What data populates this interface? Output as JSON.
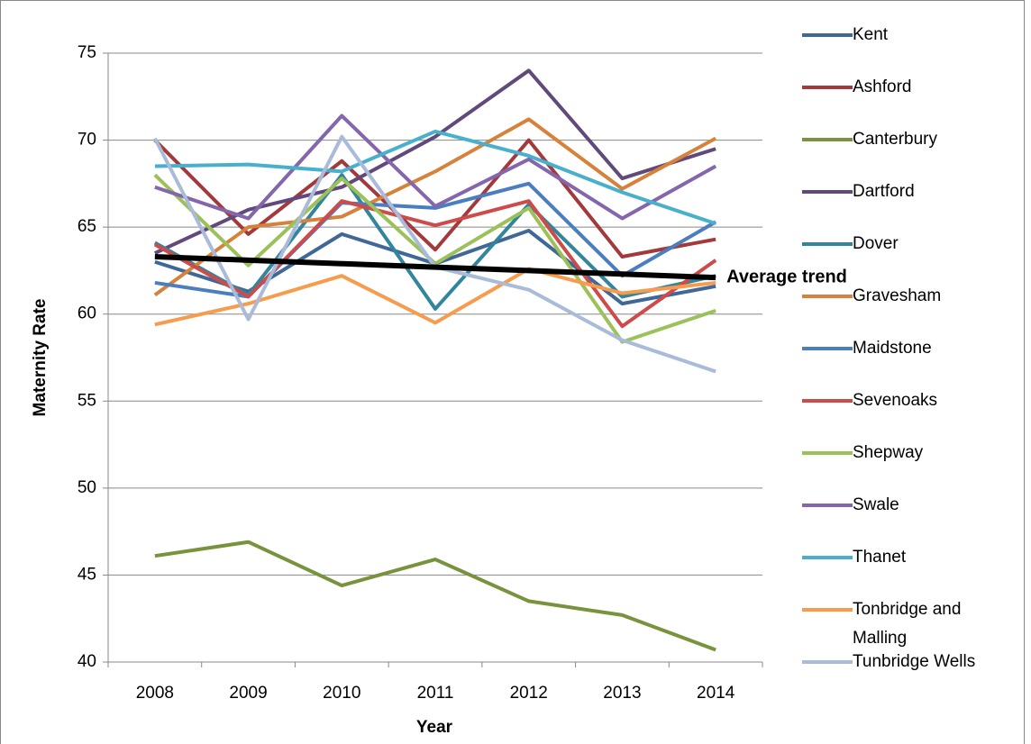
{
  "chart_data": {
    "type": "line",
    "x_label": "Year",
    "y_label": "Maternity Rate",
    "categories": [
      "2008",
      "2009",
      "2010",
      "2011",
      "2012",
      "2013",
      "2014"
    ],
    "ylim": [
      40,
      75
    ],
    "yticks": [
      40,
      45,
      50,
      55,
      60,
      65,
      70,
      75
    ],
    "grid": true,
    "legend": "right",
    "series": [
      {
        "name": "Kent",
        "color": "#3f6898",
        "values": [
          63.0,
          61.3,
          64.6,
          62.9,
          64.8,
          60.6,
          61.6
        ]
      },
      {
        "name": "Ashford",
        "color": "#a3393a",
        "values": [
          70.0,
          64.6,
          68.8,
          63.7,
          70.0,
          63.3,
          64.3
        ]
      },
      {
        "name": "Canterbury",
        "color": "#77933c",
        "values": [
          46.1,
          46.9,
          44.4,
          45.9,
          43.5,
          42.7,
          40.7
        ]
      },
      {
        "name": "Dartford",
        "color": "#604a7b",
        "values": [
          63.5,
          66.0,
          67.3,
          70.2,
          74.0,
          67.8,
          69.5
        ]
      },
      {
        "name": "Dover",
        "color": "#31859c",
        "values": [
          64.1,
          61.1,
          68.0,
          60.3,
          66.3,
          61.0,
          62.2
        ]
      },
      {
        "name": "Gravesham",
        "color": "#d7823a",
        "values": [
          61.1,
          65.0,
          65.6,
          68.2,
          71.2,
          67.2,
          70.1
        ]
      },
      {
        "name": "Maidstone",
        "color": "#4a7ec0",
        "values": [
          61.8,
          61.0,
          66.4,
          66.1,
          67.5,
          62.2,
          65.3
        ]
      },
      {
        "name": "Sevenoaks",
        "color": "#cd4b4b",
        "values": [
          64.0,
          61.0,
          66.5,
          65.1,
          66.5,
          59.3,
          63.1
        ]
      },
      {
        "name": "Shepway",
        "color": "#9bc158",
        "values": [
          68.0,
          62.8,
          67.8,
          62.9,
          66.1,
          58.4,
          60.2
        ]
      },
      {
        "name": "Swale",
        "color": "#8466ac",
        "values": [
          67.3,
          65.5,
          71.4,
          66.2,
          68.9,
          65.5,
          68.5
        ]
      },
      {
        "name": "Thanet",
        "color": "#48b0cc",
        "values": [
          68.5,
          68.6,
          68.2,
          70.5,
          69.1,
          67.0,
          65.2
        ]
      },
      {
        "name": "Tonbridge and Malling",
        "color": "#f79b4c",
        "values": [
          59.4,
          60.6,
          62.2,
          59.5,
          62.6,
          61.2,
          61.8
        ]
      },
      {
        "name": "Tunbridge Wells",
        "color": "#a9bbd9",
        "values": [
          70.1,
          59.7,
          70.2,
          62.7,
          61.4,
          58.5,
          56.7
        ]
      }
    ],
    "trend": {
      "name": "Average trend",
      "color": "#000000",
      "values": [
        63.3,
        63.1,
        62.9,
        62.7,
        62.5,
        62.3,
        62.1
      ]
    }
  }
}
